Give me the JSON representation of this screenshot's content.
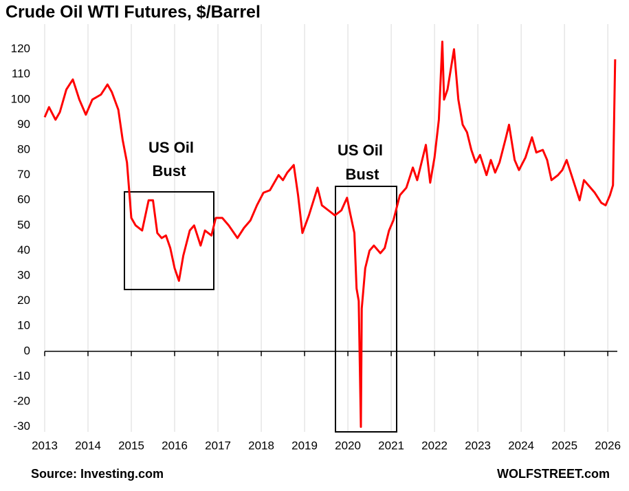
{
  "chart_data": {
    "type": "line",
    "title": "Crude Oil WTI Futures, $/Barrel",
    "source": "Source: Investing.com",
    "credit": "WOLFSTREET.com",
    "annotations": [
      {
        "lines": [
          "US Oil",
          "Bust"
        ]
      },
      {
        "lines": [
          "US Oil",
          "Bust"
        ]
      }
    ],
    "xlim": [
      2013,
      2026.22
    ],
    "xticks": [
      2013,
      2014,
      2015,
      2016,
      2017,
      2018,
      2019,
      2020,
      2021,
      2022,
      2023,
      2024,
      2025,
      2026
    ],
    "ylim": [
      -32,
      130
    ],
    "yticks": [
      -30,
      -20,
      -10,
      0,
      10,
      20,
      30,
      40,
      50,
      60,
      70,
      80,
      90,
      100,
      110,
      120
    ],
    "grid": true,
    "series": [
      {
        "color": "#ff0000",
        "x": [
          2013.0,
          2013.1,
          2013.25,
          2013.35,
          2013.5,
          2013.65,
          2013.8,
          2013.95,
          2014.1,
          2014.3,
          2014.45,
          2014.55,
          2014.7,
          2014.8,
          2014.9,
          2015.0,
          2015.1,
          2015.25,
          2015.4,
          2015.5,
          2015.6,
          2015.7,
          2015.8,
          2015.9,
          2016.0,
          2016.1,
          2016.2,
          2016.35,
          2016.45,
          2016.6,
          2016.7,
          2016.85,
          2016.95,
          2017.1,
          2017.25,
          2017.45,
          2017.6,
          2017.75,
          2017.9,
          2018.05,
          2018.2,
          2018.4,
          2018.5,
          2018.6,
          2018.75,
          2018.85,
          2018.95,
          2019.1,
          2019.3,
          2019.4,
          2019.55,
          2019.7,
          2019.85,
          2019.98,
          2020.05,
          2020.15,
          2020.2,
          2020.25,
          2020.3,
          2020.32,
          2020.4,
          2020.5,
          2020.6,
          2020.75,
          2020.85,
          2020.95,
          2021.05,
          2021.2,
          2021.35,
          2021.5,
          2021.6,
          2021.8,
          2021.9,
          2022.0,
          2022.1,
          2022.18,
          2022.22,
          2022.3,
          2022.45,
          2022.55,
          2022.65,
          2022.75,
          2022.85,
          2022.95,
          2023.05,
          2023.2,
          2023.3,
          2023.4,
          2023.5,
          2023.65,
          2023.72,
          2023.85,
          2023.95,
          2024.1,
          2024.25,
          2024.35,
          2024.5,
          2024.6,
          2024.7,
          2024.85,
          2024.95,
          2025.05,
          2025.2,
          2025.35,
          2025.45,
          2025.55,
          2025.7,
          2025.85,
          2025.95,
          2026.05,
          2026.12,
          2026.17
        ],
        "values": [
          93,
          97,
          92,
          95,
          104,
          108,
          100,
          94,
          100,
          102,
          106,
          103,
          96,
          84,
          75,
          53,
          50,
          48,
          60,
          60,
          47,
          45,
          46,
          41,
          33,
          28,
          38,
          48,
          50,
          42,
          48,
          46,
          53,
          53,
          50,
          45,
          49,
          52,
          58,
          63,
          64,
          70,
          68,
          71,
          74,
          62,
          47,
          54,
          65,
          58,
          56,
          54,
          56,
          61,
          55,
          47,
          25,
          20,
          -30,
          17,
          33,
          40,
          42,
          39,
          41,
          48,
          52,
          62,
          65,
          73,
          68,
          82,
          67,
          77,
          92,
          123,
          100,
          104,
          120,
          100,
          90,
          87,
          80,
          75,
          78,
          70,
          76,
          71,
          75,
          85,
          90,
          76,
          72,
          77,
          85,
          79,
          80,
          76,
          68,
          70,
          72,
          76,
          68,
          60,
          68,
          66,
          63,
          59,
          58,
          62,
          66,
          116
        ]
      }
    ]
  }
}
